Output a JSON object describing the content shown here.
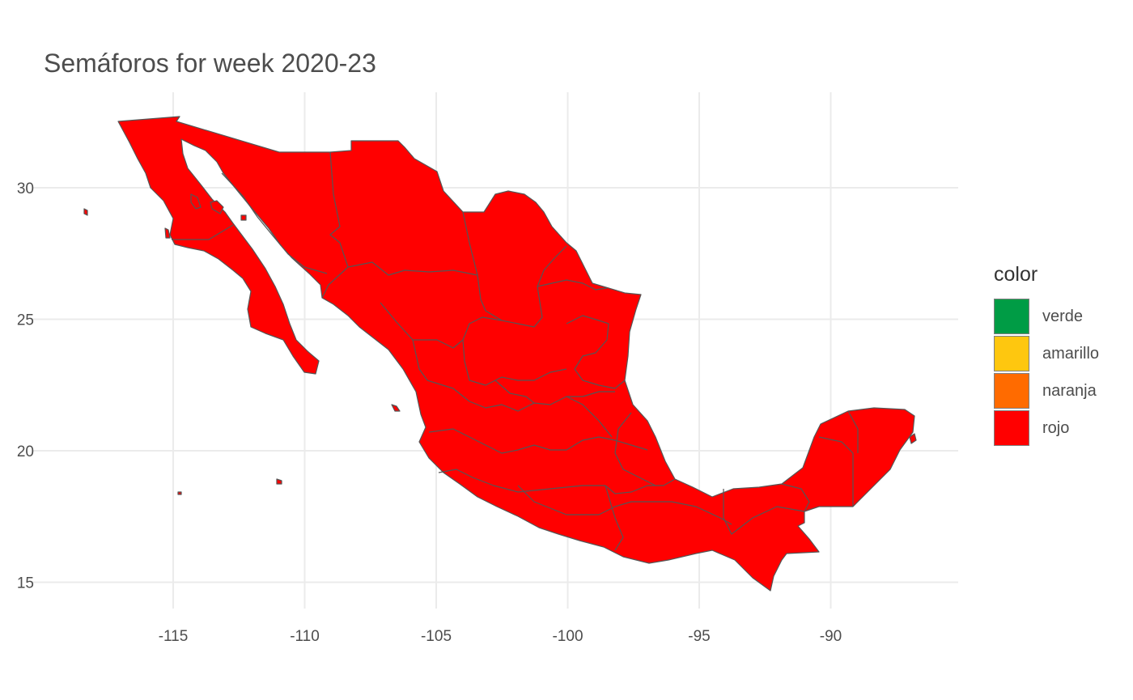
{
  "title": "Semáforos for week 2020-23",
  "legend": {
    "title": "color",
    "items": [
      {
        "label": "verde",
        "color": "#009c45"
      },
      {
        "label": "amarillo",
        "color": "#fec70f"
      },
      {
        "label": "naranja",
        "color": "#ff6b00"
      },
      {
        "label": "rojo",
        "color": "#ff0000"
      }
    ]
  },
  "chart_data": {
    "type": "map",
    "region": "Mexico states",
    "week": "2020-23",
    "fill_by_state": "rojo",
    "x_ticks": [
      "-115",
      "-110",
      "-105",
      "-100",
      "-95",
      "-90"
    ],
    "y_ticks": [
      "30",
      "25",
      "20",
      "15"
    ],
    "xlim": [
      -118.5,
      -86.5
    ],
    "ylim": [
      14.2,
      32.9
    ],
    "grid": true,
    "legend_position": "right",
    "state_fill": "#ff0000",
    "border_color": "#555555"
  }
}
